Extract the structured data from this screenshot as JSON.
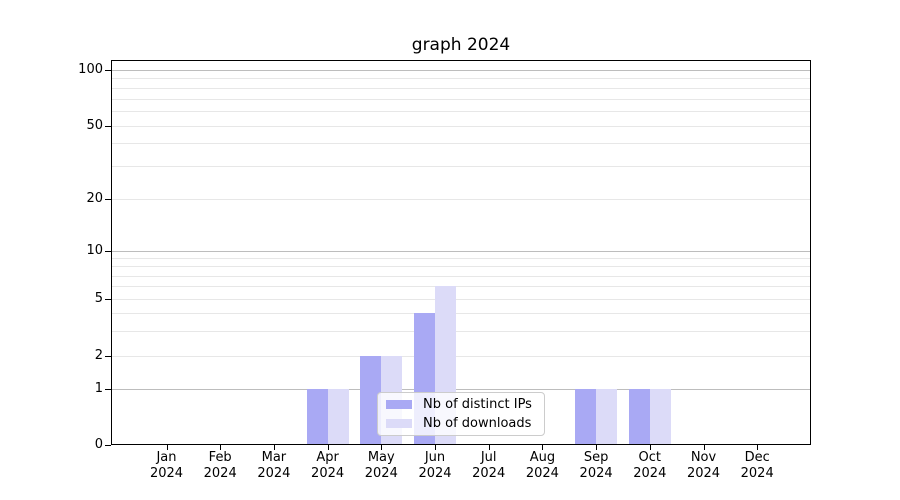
{
  "chart_data": {
    "type": "bar",
    "title": "graph 2024",
    "categories_month": [
      "Jan",
      "Feb",
      "Mar",
      "Apr",
      "May",
      "Jun",
      "Jul",
      "Aug",
      "Sep",
      "Oct",
      "Nov",
      "Dec"
    ],
    "year_label": "2024",
    "series": [
      {
        "name": "Nb of distinct IPs",
        "color": "#a9a9f4",
        "values": [
          0,
          0,
          0,
          1,
          2,
          4,
          0,
          0,
          1,
          1,
          0,
          0
        ]
      },
      {
        "name": "Nb of downloads",
        "color": "#dcdbf8",
        "values": [
          0,
          0,
          0,
          1,
          2,
          6,
          0,
          0,
          1,
          1,
          0,
          0
        ]
      }
    ],
    "y_axis": {
      "tick_labels": [
        "0",
        "1",
        "2",
        "5",
        "10",
        "20",
        "50",
        "100"
      ],
      "tick_values": [
        0,
        1,
        2,
        5,
        10,
        20,
        50,
        100
      ],
      "scale": "log-like",
      "ymin": 0,
      "ymax": 100
    },
    "x_axis": {
      "months": 12
    },
    "grid": {
      "major_values": [
        1,
        10,
        100
      ],
      "minor_values": [
        2,
        3,
        4,
        5,
        6,
        7,
        8,
        9,
        20,
        30,
        40,
        50,
        60,
        70,
        80,
        90
      ],
      "major_color": "#bdbdbd",
      "minor_color": "#e7e7e7"
    },
    "legend": {
      "position": "lower center",
      "entries": [
        "Nb of distinct IPs",
        "Nb of downloads"
      ]
    }
  },
  "colors": {
    "spine": "#000000",
    "legend_border": "#cccccc",
    "text": "#000000"
  }
}
